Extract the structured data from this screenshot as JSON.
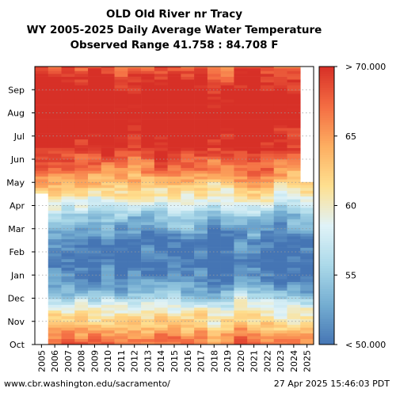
{
  "header": {
    "title": "OLD Old River nr Tracy",
    "subtitle": "WY 2005-2025 Daily Average Water Temperature",
    "range": "Observed Range 41.758 : 84.708 F"
  },
  "footer": {
    "source": "www.cbr.washington.edu/sacramento/",
    "timestamp": "27 Apr 2025 15:46:03 PDT"
  },
  "chart_data": {
    "type": "heatmap",
    "x_categories": [
      "2005",
      "2006",
      "2007",
      "2008",
      "2009",
      "2010",
      "2011",
      "2012",
      "2013",
      "2014",
      "2015",
      "2016",
      "2017",
      "2018",
      "2019",
      "2020",
      "2021",
      "2022",
      "2023",
      "2024",
      "2025"
    ],
    "y_months": [
      "Oct",
      "Nov",
      "Dec",
      "Jan",
      "Feb",
      "Mar",
      "Apr",
      "May",
      "Jun",
      "Jul",
      "Aug",
      "Sep"
    ],
    "colorbar": {
      "min": 50,
      "max": 70,
      "tick_labels": [
        "< 50.000",
        "55",
        "60",
        "65",
        "> 70.000"
      ],
      "tick_values": [
        50,
        55,
        60,
        65,
        70
      ],
      "colors": [
        "#4575b4",
        "#74add1",
        "#abd9e9",
        "#e0f3f8",
        "#fee090",
        "#fdae61",
        "#f46d43",
        "#d73027"
      ]
    },
    "monthly_typical_values": {
      "Oct": 65,
      "Nov": 60,
      "Dec": 53,
      "Jan": 50,
      "Feb": 51,
      "Mar": 55,
      "Apr": 61,
      "May": 66,
      "Jun": 70,
      "Jul": 72,
      "Aug": 72,
      "Sep": 70
    },
    "coverage": {
      "2005": "starts mid-Apr",
      "2025": "ends late Apr"
    },
    "grid": "dotted horizontal lines at month boundaries",
    "range_observed": [
      41.758,
      84.708
    ]
  }
}
